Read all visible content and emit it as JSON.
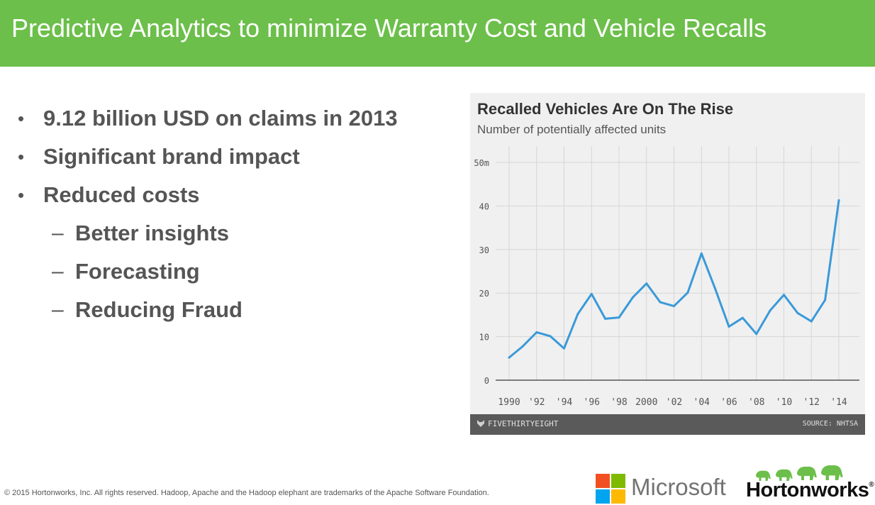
{
  "slide": {
    "title": "Predictive Analytics to minimize Warranty Cost and Vehicle Recalls",
    "bullets": [
      {
        "level": 1,
        "marker": "•",
        "text": "9.12 billion USD on claims in 2013"
      },
      {
        "level": 1,
        "marker": "•",
        "text": "Significant brand impact"
      },
      {
        "level": 1,
        "marker": "•",
        "text": "Reduced costs"
      },
      {
        "level": 2,
        "marker": "–",
        "text": "Better insights"
      },
      {
        "level": 2,
        "marker": "–",
        "text": "Forecasting"
      },
      {
        "level": 2,
        "marker": "–",
        "text": "Reducing Fraud"
      }
    ],
    "footer": {
      "copyright": "© 2015 Hortonworks, Inc. All rights reserved. Hadoop, Apache and the Hadoop elephant are trademarks of the Apache Software Foundation.",
      "microsoft_label": "Microsoft",
      "hortonworks_label": "Hortonworks",
      "hortonworks_reg": "®"
    },
    "colors": {
      "title_bar": "#6cbf4a",
      "line": "#3a9ad9",
      "ms_red": "#f25022",
      "ms_green": "#7fba00",
      "ms_blue": "#00a4ef",
      "ms_yellow": "#ffb900",
      "hw_green": "#6cbf4a"
    }
  },
  "chart_data": {
    "type": "line",
    "title": "Recalled Vehicles Are On The Rise",
    "subtitle": "Number of potentially affected units",
    "x": [
      1990,
      1991,
      1992,
      1993,
      1994,
      1995,
      1996,
      1997,
      1998,
      1999,
      2000,
      2001,
      2002,
      2003,
      2004,
      2005,
      2006,
      2007,
      2008,
      2009,
      2010,
      2011,
      2012,
      2013,
      2014
    ],
    "series": [
      {
        "values": [
          5.2,
          7.8,
          11.0,
          10.1,
          7.3,
          15.2,
          19.8,
          14.1,
          14.4,
          19.0,
          22.2,
          17.9,
          17.0,
          20.1,
          29.1,
          21.0,
          12.3,
          14.3,
          10.6,
          16.0,
          19.6,
          15.4,
          13.5,
          18.4,
          41.3
        ]
      }
    ],
    "x_tick_labels": [
      "1990",
      "'92",
      "'94",
      "'96",
      "'98",
      "2000",
      "'02",
      "'04",
      "'06",
      "'08",
      "'10",
      "'12",
      "'14"
    ],
    "y_tick_labels": [
      "0",
      "10",
      "20",
      "30",
      "40",
      "50m"
    ],
    "ylim": [
      0,
      50
    ],
    "grid": true,
    "brand": "FIVETHIRTYEIGHT",
    "source": "SOURCE: NHTSA"
  }
}
